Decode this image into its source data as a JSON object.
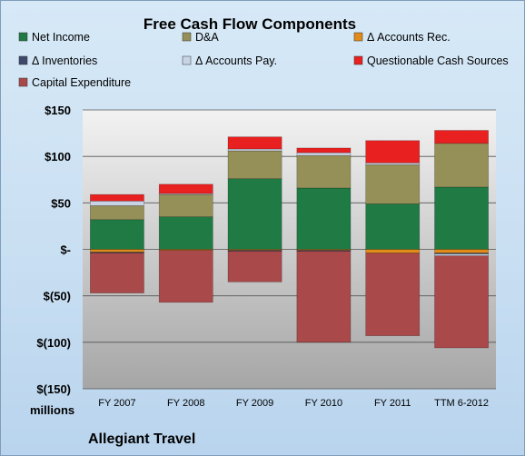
{
  "chart_data": {
    "type": "bar",
    "stacked": true,
    "title": "Free Cash Flow Components",
    "unit_label": "millions",
    "brand": "Allegiant Travel",
    "categories": [
      "FY 2007",
      "FY 2008",
      "FY 2009",
      "FY 2010",
      "FY 2011",
      "TTM 6-2012"
    ],
    "ylim": [
      -150,
      150
    ],
    "yticks": [
      150,
      100,
      50,
      0,
      -50,
      -100,
      -150
    ],
    "ytick_labels": [
      "$150",
      "$100",
      "$50",
      "$-",
      "$(50)",
      "$(100)",
      "$(150)"
    ],
    "grid": true,
    "legend_position": "top",
    "series": [
      {
        "name": "Net Income",
        "color": "#1f7a44",
        "values": [
          32,
          35,
          76,
          66,
          49,
          67
        ]
      },
      {
        "name": "D&A",
        "color": "#958f58",
        "values": [
          15,
          24,
          30,
          35,
          42,
          47
        ]
      },
      {
        "name": "Δ Accounts Rec.",
        "color": "#e08b1a",
        "values": [
          -3,
          -1,
          -1,
          -1,
          -4,
          -4
        ]
      },
      {
        "name": "Δ Inventories",
        "color": "#3d4a6b",
        "values": [
          -1,
          0,
          -1,
          -1,
          0,
          -1
        ]
      },
      {
        "name": "Δ Accounts Pay.",
        "color": "#c9d3e6",
        "values": [
          5,
          1,
          2,
          3,
          2,
          -2
        ]
      },
      {
        "name": "Questionable Cash Sources",
        "color": "#e82020",
        "values": [
          7,
          10,
          13,
          5,
          24,
          14
        ]
      },
      {
        "name": "Capital Expenditure",
        "color": "#a94949",
        "values": [
          -43,
          -56,
          -33,
          -98,
          -89,
          -99
        ]
      }
    ]
  }
}
